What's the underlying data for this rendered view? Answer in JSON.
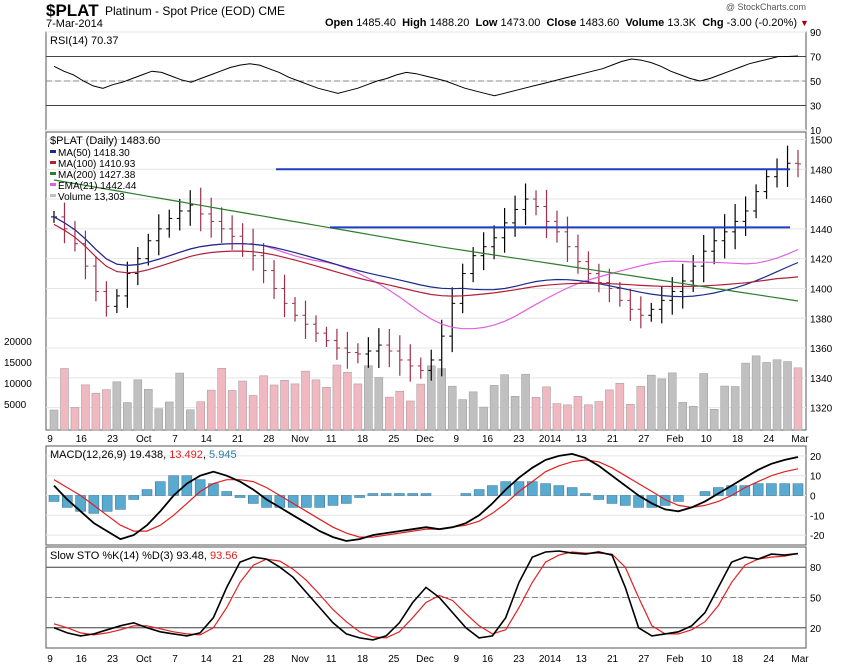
{
  "header": {
    "symbol": "$PLAT",
    "subtitle": "Platinum - Spot Price (EOD) CME",
    "date": "7-Mar-2014",
    "watermark": "@ StockCharts.com",
    "quote": {
      "open_label": "Open",
      "open": "1485.40",
      "high_label": "High",
      "high": "1488.20",
      "low_label": "Low",
      "low": "1473.00",
      "close_label": "Close",
      "close": "1483.60",
      "volume_label": "Volume",
      "volume": "13.3K",
      "chg_label": "Chg",
      "chg": "-3.00 (-0.20%)"
    }
  },
  "colors": {
    "up": "#000000",
    "down": "#a0304a",
    "ma50": "#1a2c8a",
    "ma100": "#b0203a",
    "ma200": "#2e7d2e",
    "ema21": "#e060e0",
    "hline": "#1f3fbf",
    "vol_up": "#c0c0c0",
    "vol_down": "#f0b8c0",
    "macd_hist": "#58aad0"
  },
  "chart_data": [
    {
      "type": "line",
      "title": "RSI(14) 70.37",
      "series": [
        {
          "name": "RSI(14)",
          "values": [
            62,
            58,
            55,
            50,
            46,
            44,
            47,
            49,
            52,
            55,
            58,
            57,
            54,
            51,
            49,
            52,
            55,
            58,
            61,
            63,
            64,
            63,
            60,
            57,
            53,
            50,
            47,
            44,
            42,
            40,
            42,
            44,
            47,
            50,
            52,
            55,
            57,
            56,
            54,
            52,
            50,
            47,
            44,
            42,
            40,
            38,
            40,
            42,
            44,
            46,
            48,
            50,
            52,
            54,
            56,
            58,
            60,
            63,
            66,
            68,
            67,
            65,
            62,
            58,
            55,
            52,
            50,
            52,
            55,
            58,
            61,
            64,
            66,
            68,
            70,
            70,
            70.37
          ]
        }
      ],
      "ylim": [
        10,
        90
      ],
      "yticks": [
        10,
        30,
        50,
        70,
        90
      ]
    },
    {
      "type": "bar",
      "title": "$PLAT (Daily) 1483.60",
      "legend": [
        {
          "name": "MA(50) 1418.30",
          "color": "#1a2c8a"
        },
        {
          "name": "MA(100) 1410.93",
          "color": "#b0203a"
        },
        {
          "name": "MA(200) 1427.38",
          "color": "#2e7d2e"
        },
        {
          "name": "EMA(21) 1442.44",
          "color": "#e060e0"
        },
        {
          "name": "Volume 13,303",
          "color": "#c0c0c0"
        }
      ],
      "closes": [
        1448,
        1440,
        1430,
        1415,
        1398,
        1388,
        1395,
        1410,
        1420,
        1432,
        1440,
        1447,
        1452,
        1456,
        1450,
        1445,
        1440,
        1435,
        1430,
        1422,
        1412,
        1400,
        1390,
        1382,
        1376,
        1370,
        1365,
        1360,
        1357,
        1356,
        1358,
        1362,
        1358,
        1352,
        1348,
        1345,
        1352,
        1368,
        1390,
        1410,
        1422,
        1428,
        1434,
        1444,
        1453,
        1460,
        1455,
        1445,
        1438,
        1428,
        1418,
        1410,
        1404,
        1400,
        1392,
        1386,
        1382,
        1386,
        1392,
        1398,
        1405,
        1415,
        1425,
        1432,
        1438,
        1445,
        1452,
        1465,
        1475,
        1480,
        1484,
        1483.6
      ],
      "hlines": [
        1480,
        1441
      ],
      "ylim": [
        1305,
        1505
      ],
      "yticks": [
        1320,
        1340,
        1360,
        1380,
        1400,
        1420,
        1440,
        1460,
        1480,
        1500
      ],
      "volume_ticks": [
        "5000",
        "10000",
        "15000",
        "20000"
      ],
      "xlabels": [
        "9",
        "16",
        "23",
        "Oct",
        "7",
        "14",
        "21",
        "28",
        "Nov",
        "11",
        "18",
        "25",
        "Dec",
        "9",
        "16",
        "23",
        "2014",
        "13",
        "21",
        "27",
        "Feb",
        "10",
        "18",
        "24",
        "Mar"
      ]
    },
    {
      "type": "line",
      "title": "MACD(12,26,9) 19.438, 13.492, 5.945",
      "title_parts": {
        "name": "MACD(12,26,9)",
        "macd": "19.438",
        "signal": "13.492",
        "hist": "5.945"
      },
      "series": [
        {
          "name": "MACD",
          "values": [
            5,
            -2,
            -8,
            -14,
            -18,
            -22,
            -20,
            -15,
            -8,
            0,
            6,
            10,
            12,
            10,
            7,
            3,
            -2,
            -6,
            -10,
            -14,
            -18,
            -21,
            -23,
            -22,
            -20,
            -19,
            -18,
            -17,
            -16,
            -17,
            -16,
            -14,
            -10,
            -4,
            3,
            9,
            14,
            18,
            20,
            21,
            19,
            15,
            10,
            5,
            0,
            -4,
            -7,
            -8,
            -6,
            -3,
            1,
            5,
            9,
            13,
            16,
            18,
            19.44
          ]
        },
        {
          "name": "Signal",
          "values": [
            8,
            4,
            0,
            -5,
            -10,
            -15,
            -18,
            -18,
            -15,
            -10,
            -4,
            2,
            6,
            8,
            8,
            7,
            4,
            0,
            -4,
            -8,
            -12,
            -16,
            -19,
            -21,
            -21,
            -20,
            -19,
            -18,
            -17,
            -17,
            -16,
            -15,
            -13,
            -9,
            -4,
            2,
            7,
            12,
            15,
            17,
            18,
            17,
            14,
            10,
            6,
            2,
            -2,
            -5,
            -6,
            -5,
            -3,
            0,
            4,
            7,
            10,
            12,
            13.49
          ]
        }
      ],
      "ylim": [
        -25,
        25
      ],
      "yticks": [
        -20,
        -10,
        0,
        10,
        20
      ]
    },
    {
      "type": "line",
      "title": "Slow STO %K(14) %D(3) 93.48, 93.56",
      "title_parts": {
        "name": "Slow STO %K(14) %D(3)",
        "k": "93.48",
        "d": "93.56"
      },
      "series": [
        {
          "name": "%K",
          "values": [
            20,
            15,
            12,
            14,
            18,
            22,
            25,
            20,
            16,
            14,
            12,
            15,
            30,
            60,
            85,
            90,
            88,
            80,
            70,
            55,
            40,
            25,
            14,
            10,
            8,
            12,
            25,
            45,
            60,
            50,
            35,
            20,
            10,
            12,
            30,
            65,
            90,
            95,
            96,
            94,
            93,
            95,
            92,
            60,
            20,
            12,
            14,
            16,
            22,
            35,
            60,
            85,
            90,
            88,
            93,
            92,
            93.48
          ]
        },
        {
          "name": "%D",
          "values": [
            24,
            20,
            15,
            13,
            15,
            18,
            22,
            22,
            19,
            16,
            14,
            13,
            20,
            40,
            65,
            82,
            88,
            86,
            78,
            67,
            53,
            38,
            26,
            16,
            11,
            10,
            16,
            30,
            45,
            52,
            47,
            34,
            22,
            14,
            18,
            40,
            65,
            85,
            92,
            95,
            94,
            94,
            93,
            80,
            50,
            22,
            14,
            14,
            18,
            26,
            42,
            65,
            82,
            88,
            90,
            91,
            93.56
          ]
        }
      ],
      "ylim": [
        0,
        100
      ],
      "yticks": [
        20,
        50,
        80
      ]
    }
  ]
}
